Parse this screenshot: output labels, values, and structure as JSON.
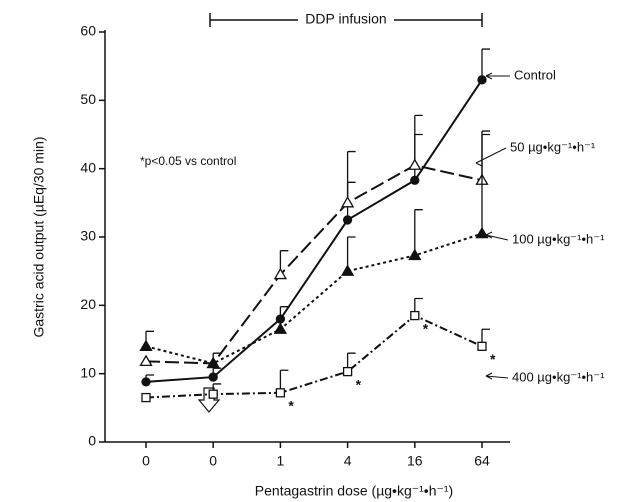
{
  "chart_data": {
    "type": "line",
    "y_label": "Gastric acid output (µEq/30 min)",
    "x_label": "Pentagastrin dose (µg•kg⁻¹•h⁻¹)",
    "bracket_label": "DDP infusion",
    "annotation": "*p<0.05 vs control",
    "significance_marker": "*",
    "categories": [
      "0",
      "0",
      "1",
      "4",
      "16",
      "64"
    ],
    "ylim": [
      0,
      60
    ],
    "yticks": [
      0,
      10,
      20,
      30,
      40,
      50,
      60
    ],
    "series": [
      {
        "name": "Control",
        "color": "#111111",
        "marker": "circle-filled",
        "dash": "solid",
        "values": [
          8.8,
          9.5,
          18,
          32.5,
          38.3,
          53
        ],
        "errors": [
          1,
          1.3,
          1.8,
          5.5,
          9.5,
          4.5
        ],
        "significant": [
          false,
          false,
          false,
          false,
          false,
          false
        ]
      },
      {
        "name": "50 µg•kg⁻¹•h⁻¹",
        "color": "#111111",
        "marker": "triangle-open",
        "dash": "long-dash",
        "values": [
          11.8,
          11.5,
          24.5,
          35,
          40.5,
          38.3
        ],
        "errors": [
          null,
          1.5,
          3.5,
          7.5,
          4.5,
          7.2
        ],
        "significant": [
          false,
          false,
          false,
          false,
          false,
          false
        ]
      },
      {
        "name": "100 µg•kg⁻¹•h⁻¹",
        "color": "#111111",
        "marker": "triangle-filled",
        "dash": "dotted",
        "values": [
          14,
          11.5,
          16.5,
          25,
          27.3,
          30.5
        ],
        "errors": [
          2.2,
          null,
          null,
          5,
          6.7,
          14.5
        ],
        "significant": [
          false,
          false,
          false,
          false,
          false,
          false
        ]
      },
      {
        "name": "400 µg•kg⁻¹•h⁻¹",
        "color": "#111111",
        "marker": "square-open",
        "dash": "dash-dot",
        "values": [
          6.5,
          7,
          7.2,
          10.3,
          18.5,
          14
        ],
        "errors": [
          null,
          1.5,
          3.3,
          2.7,
          2.5,
          2.5
        ],
        "significant": [
          false,
          false,
          true,
          true,
          true,
          true
        ]
      }
    ]
  }
}
